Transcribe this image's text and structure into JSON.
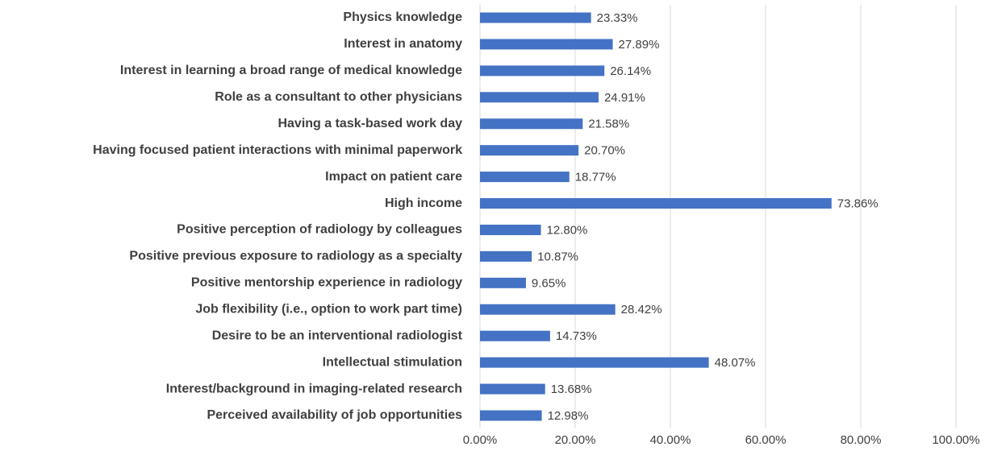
{
  "chart_data": {
    "type": "bar",
    "orientation": "horizontal",
    "color": "#4472c4",
    "grid": true,
    "categories": [
      "Physics knowledge",
      "Interest in anatomy",
      "Interest in learning a broad range of medical knowledge",
      "Role as a consultant to other physicians",
      "Having a task-based work day",
      "Having focused patient interactions with minimal paperwork",
      "Impact on patient care",
      "High income",
      "Positive perception of radiology by colleagues",
      "Positive previous exposure to radiology as a specialty",
      "Positive mentorship experience in radiology",
      "Job flexibility (i.e., option to work part time)",
      "Desire to be an interventional radiologist",
      "Intellectual stimulation",
      "Interest/background in imaging-related research",
      "Perceived availability of job opportunities"
    ],
    "values": [
      23.33,
      27.89,
      26.14,
      24.91,
      21.58,
      20.7,
      18.77,
      73.86,
      12.8,
      10.87,
      9.65,
      28.42,
      14.73,
      48.07,
      13.68,
      12.98
    ],
    "value_labels": [
      "23.33%",
      "27.89%",
      "26.14%",
      "24.91%",
      "21.58%",
      "20.70%",
      "18.77%",
      "73.86%",
      "12.80%",
      "10.87%",
      "9.65%",
      "28.42%",
      "14.73%",
      "48.07%",
      "13.68%",
      "12.98%"
    ],
    "xlim": [
      0,
      100
    ],
    "xticks": [
      {
        "value": 0,
        "label": "0.00%"
      },
      {
        "value": 20,
        "label": "20.00%"
      },
      {
        "value": 40,
        "label": "40.00%"
      },
      {
        "value": 60,
        "label": "60.00%"
      },
      {
        "value": 80,
        "label": "80.00%"
      },
      {
        "value": 100,
        "label": "100.00%"
      }
    ]
  }
}
